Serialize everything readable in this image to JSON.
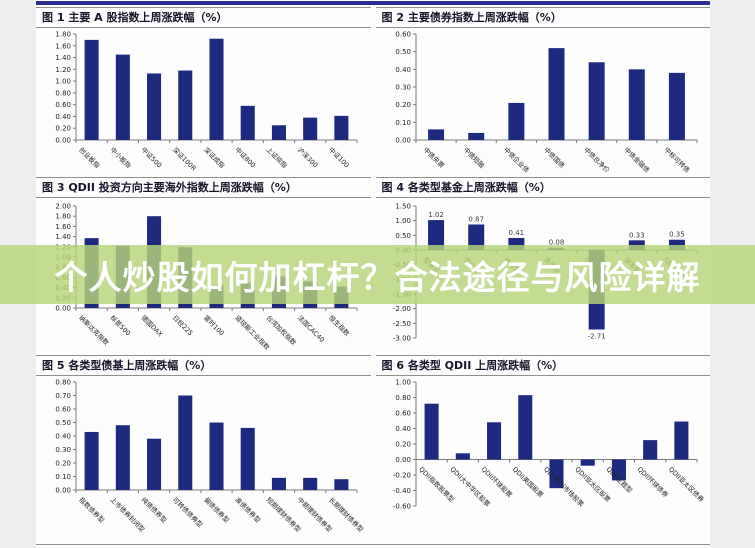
{
  "watermark": {
    "text": "个人炒股如何加杠杆？合法途径与风险详解",
    "band_color": "rgba(183,212,122,0.82)",
    "text_color": "#ffffff"
  },
  "theme": {
    "bar_color": "#1e2a80",
    "axis_color": "#7a7a7a",
    "tick_label_color": "#222222",
    "data_label_color": "#3a3a3a",
    "rule_color": "#8f8f8f",
    "top_band_color": "#2d2d91"
  },
  "chart_data": [
    {
      "id": "fig1",
      "type": "bar",
      "title": "图 1  主要 A 股指数上周涨跌幅（%）",
      "categories": [
        "创业板指",
        "中小板指",
        "中证500",
        "深证100R",
        "深证成指",
        "中证800",
        "上证综指",
        "沪深300",
        "中证100"
      ],
      "values": [
        1.7,
        1.45,
        1.13,
        1.18,
        1.72,
        0.58,
        0.25,
        0.38,
        0.41
      ],
      "ylim": [
        0,
        1.8
      ],
      "ytick_step": 0.2,
      "xlabel": "",
      "ylabel": "",
      "grid": false,
      "legend": "none",
      "data_labels": false
    },
    {
      "id": "fig2",
      "type": "bar",
      "title": "图 2  主要债券指数上周涨跌幅（%）",
      "categories": [
        "中债央票",
        "中债短融",
        "中债企业债",
        "中债国债",
        "中债总净价",
        "中债金融债",
        "中标可转债"
      ],
      "values": [
        0.06,
        0.04,
        0.21,
        0.52,
        0.44,
        0.4,
        0.38
      ],
      "ylim": [
        0,
        0.6
      ],
      "ytick_step": 0.1,
      "xlabel": "",
      "ylabel": "",
      "grid": false,
      "legend": "none",
      "data_labels": false
    },
    {
      "id": "fig3",
      "type": "bar",
      "title": "图 3 QDII 投资方向主要海外指数上周涨跌幅（%）",
      "categories": [
        "纳斯达克指数",
        "标普500",
        "德国DAX",
        "日经225",
        "富时100",
        "道琼斯工业指数",
        "台湾加权指数",
        "法国CAC40",
        "恒生指数"
      ],
      "values": [
        1.37,
        1.22,
        1.8,
        1.19,
        0.45,
        0.5,
        0.62,
        0.52,
        0.42
      ],
      "ylim": [
        0,
        2.0
      ],
      "ytick_step": 0.2,
      "xlabel": "",
      "ylabel": "",
      "grid": false,
      "legend": "none",
      "data_labels": false
    },
    {
      "id": "fig4",
      "type": "bar",
      "title": "图 4  各类型基金上周涨跌幅（%）",
      "categories": [
        "股票型",
        "混合型",
        "债券型",
        "货币型",
        "QDII股票型",
        "保本型",
        "QDII债券型"
      ],
      "values": [
        1.02,
        0.87,
        0.41,
        0.08,
        -2.71,
        0.33,
        0.35
      ],
      "ylim": [
        -3.0,
        1.5
      ],
      "ytick_step": 0.5,
      "xlabel": "",
      "ylabel": "",
      "grid": false,
      "legend": "none",
      "data_labels": true
    },
    {
      "id": "fig5",
      "type": "bar",
      "title": "图 5  各类型债基上周涨跌幅（%）",
      "categories": [
        "指数债券型",
        "上市债券封闭型",
        "纯债债券型",
        "可转债债券型",
        "偏债债券型",
        "准债债券型",
        "短期理财债券型",
        "中期理财债券型",
        "长期理财债券型"
      ],
      "values": [
        0.43,
        0.48,
        0.38,
        0.7,
        0.5,
        0.46,
        0.09,
        0.09,
        0.08
      ],
      "ylim": [
        0,
        0.8
      ],
      "ytick_step": 0.1,
      "xlabel": "",
      "ylabel": "",
      "grid": false,
      "legend": "none",
      "data_labels": false
    },
    {
      "id": "fig6",
      "type": "bar",
      "title": "图 6  各类型 QDII 上周涨跌幅（%）",
      "categories": [
        "QDII指数股票型",
        "QDII大中华区股票",
        "QDII环球股票",
        "QDII美国股票",
        "QDII新兴市场股票",
        "QDII亚太区股票",
        "QDII主题型",
        "QDII环球债券",
        "QDII亚太区债券"
      ],
      "values": [
        0.72,
        0.08,
        0.48,
        0.83,
        -0.37,
        -0.08,
        -0.27,
        0.25,
        0.49
      ],
      "ylim": [
        -0.6,
        1.0
      ],
      "ytick_step": 0.2,
      "xlabel": "",
      "ylabel": "",
      "grid": false,
      "legend": "none",
      "data_labels": false
    }
  ]
}
